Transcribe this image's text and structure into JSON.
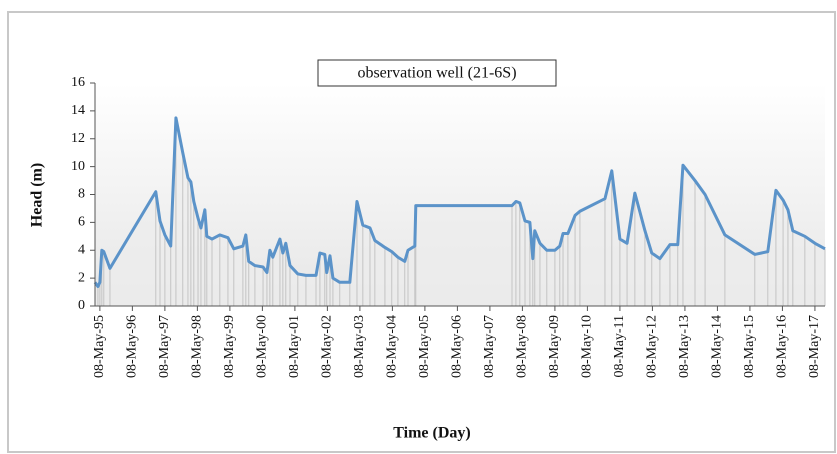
{
  "chart_data": {
    "type": "line",
    "title": "observation well (21-6S)",
    "xlabel": "Time (Day)",
    "ylabel": "Head (m)",
    "xlim": [
      1995.2,
      2017.66
    ],
    "ylim": [
      0,
      16
    ],
    "yticks": [
      0,
      2,
      4,
      6,
      8,
      10,
      12,
      14,
      16
    ],
    "xticks": [
      {
        "value": 1995.35,
        "label": "08-May-95"
      },
      {
        "value": 1996.35,
        "label": "08-May-96"
      },
      {
        "value": 1997.35,
        "label": "08-May-97"
      },
      {
        "value": 1998.35,
        "label": "08-May-98"
      },
      {
        "value": 1999.35,
        "label": "08-May-99"
      },
      {
        "value": 2000.35,
        "label": "08-May-00"
      },
      {
        "value": 2001.35,
        "label": "08-May-01"
      },
      {
        "value": 2002.35,
        "label": "08-May-02"
      },
      {
        "value": 2003.35,
        "label": "08-May-03"
      },
      {
        "value": 2004.35,
        "label": "08-May-04"
      },
      {
        "value": 2005.35,
        "label": "08-May-05"
      },
      {
        "value": 2006.35,
        "label": "08-May-06"
      },
      {
        "value": 2007.35,
        "label": "08-May-07"
      },
      {
        "value": 2008.35,
        "label": "08-May-08"
      },
      {
        "value": 2009.35,
        "label": "08-May-09"
      },
      {
        "value": 2010.35,
        "label": "08-May-10"
      },
      {
        "value": 2011.35,
        "label": "08-May-11"
      },
      {
        "value": 2012.35,
        "label": "08-May-12"
      },
      {
        "value": 2013.35,
        "label": "08-May-13"
      },
      {
        "value": 2014.35,
        "label": "08-May-14"
      },
      {
        "value": 2015.35,
        "label": "08-May-15"
      },
      {
        "value": 2016.35,
        "label": "08-May-16"
      },
      {
        "value": 2017.35,
        "label": "08-May-17"
      }
    ],
    "color": "#5b93c9",
    "x": [
      1995.2,
      1995.29,
      1995.35,
      1995.41,
      1995.47,
      1995.66,
      1997.07,
      1997.2,
      1997.35,
      1997.53,
      1997.69,
      1997.9,
      1998.06,
      1998.15,
      1998.24,
      1998.37,
      1998.46,
      1998.58,
      1998.64,
      1998.8,
      1999.04,
      1999.29,
      1999.47,
      1999.75,
      1999.84,
      1999.93,
      2000.12,
      2000.37,
      2000.49,
      2000.58,
      2000.67,
      2000.89,
      2000.98,
      2001.07,
      2001.2,
      2001.44,
      2001.69,
      2002.0,
      2002.12,
      2002.27,
      2002.33,
      2002.43,
      2002.52,
      2002.73,
      2003.04,
      2003.26,
      2003.44,
      2003.66,
      2003.81,
      2004.12,
      2004.33,
      2004.52,
      2004.73,
      2004.83,
      2005.04,
      2005.07,
      2008.03,
      2008.15,
      2008.27,
      2008.43,
      2008.58,
      2008.67,
      2008.73,
      2008.89,
      2009.1,
      2009.35,
      2009.5,
      2009.6,
      2009.75,
      2009.97,
      2010.12,
      2010.89,
      2011.1,
      2011.35,
      2011.57,
      2011.81,
      2012.12,
      2012.33,
      2012.58,
      2012.89,
      2013.13,
      2013.29,
      2013.66,
      2013.97,
      2014.58,
      2015.5,
      2015.9,
      2016.15,
      2016.37,
      2016.52,
      2016.67,
      2017.04,
      2017.35,
      2017.66
    ],
    "values": [
      1.7,
      1.4,
      1.7,
      4.0,
      3.9,
      2.7,
      8.2,
      6.1,
      5.1,
      4.3,
      13.5,
      11.0,
      9.2,
      8.9,
      7.5,
      6.3,
      5.6,
      6.9,
      5.0,
      4.8,
      5.1,
      4.9,
      4.1,
      4.3,
      5.1,
      3.2,
      2.9,
      2.8,
      2.4,
      4.0,
      3.5,
      4.8,
      3.8,
      4.5,
      2.9,
      2.3,
      2.2,
      2.2,
      3.8,
      3.7,
      2.4,
      3.6,
      2.0,
      1.7,
      1.7,
      7.5,
      5.8,
      5.6,
      4.7,
      4.2,
      3.9,
      3.5,
      3.2,
      4.0,
      4.3,
      7.2,
      7.2,
      7.5,
      7.4,
      6.1,
      6.0,
      3.4,
      5.4,
      4.5,
      4.0,
      4.0,
      4.3,
      5.2,
      5.2,
      6.5,
      6.8,
      7.7,
      9.7,
      4.8,
      4.5,
      8.1,
      5.4,
      3.8,
      3.4,
      4.4,
      4.4,
      10.1,
      9.0,
      8.0,
      5.1,
      3.7,
      3.9,
      8.3,
      7.6,
      6.9,
      5.4,
      5.0,
      4.5,
      4.1
    ]
  }
}
